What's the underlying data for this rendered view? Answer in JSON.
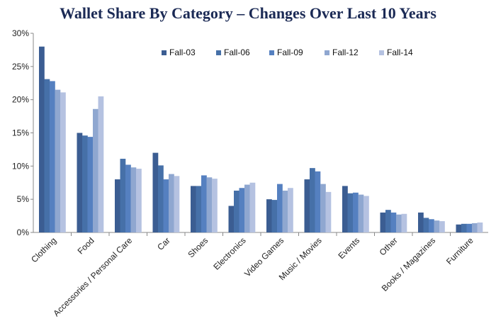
{
  "chart_data": {
    "type": "bar",
    "title": "Wallet Share By Category – Changes Over Last 10 Years",
    "xlabel": "",
    "ylabel": "",
    "ylim": [
      0,
      30
    ],
    "yticks": [
      "0%",
      "5%",
      "10%",
      "15%",
      "20%",
      "25%",
      "30%"
    ],
    "grid": false,
    "legend_position": "top-right",
    "categories": [
      "Clothing",
      "Food",
      "Accessories / Personal Care",
      "Car",
      "Shoes",
      "Electronics",
      "Video Games",
      "Music / Movies",
      "Events",
      "Other",
      "Books / Magazines",
      "Furniture"
    ],
    "series": [
      {
        "name": "Fall-03",
        "color": "#3b5d92",
        "values": [
          28.0,
          15.0,
          8.0,
          12.0,
          7.0,
          4.0,
          5.0,
          8.0,
          7.0,
          3.0,
          3.0,
          1.2
        ]
      },
      {
        "name": "Fall-06",
        "color": "#4670a8",
        "values": [
          23.1,
          14.6,
          11.1,
          10.1,
          7.0,
          6.3,
          4.9,
          9.7,
          5.9,
          3.4,
          2.2,
          1.3
        ]
      },
      {
        "name": "Fall-09",
        "color": "#5580c0",
        "values": [
          22.8,
          14.4,
          10.2,
          8.0,
          8.6,
          6.7,
          7.3,
          9.2,
          6.0,
          3.0,
          2.0,
          1.3
        ]
      },
      {
        "name": "Fall-12",
        "color": "#8fa7d0",
        "values": [
          21.5,
          18.6,
          9.8,
          8.8,
          8.3,
          7.2,
          6.3,
          7.3,
          5.7,
          2.7,
          1.8,
          1.4
        ]
      },
      {
        "name": "Fall-14",
        "color": "#b5c2e1",
        "values": [
          21.1,
          20.5,
          9.6,
          8.5,
          8.1,
          7.5,
          6.7,
          6.1,
          5.5,
          2.8,
          1.7,
          1.5
        ]
      }
    ]
  }
}
